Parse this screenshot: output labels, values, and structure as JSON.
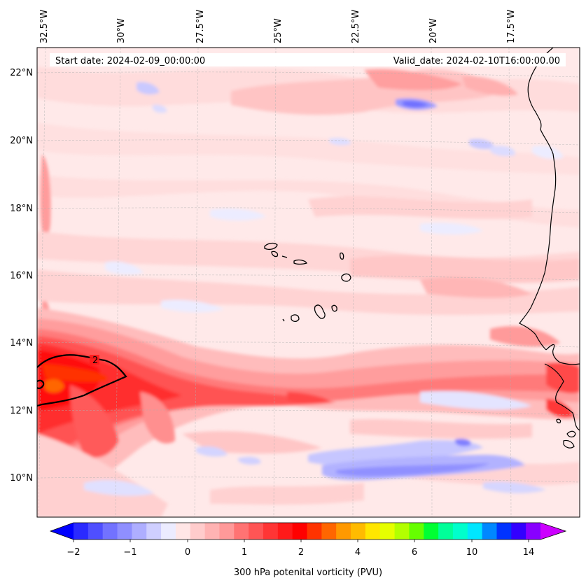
{
  "header": {
    "start_date": "Start date: 2024-02-09_00:00:00",
    "valid_date": "Valid_date: 2024-02-10T16:00:00.00"
  },
  "longitude_labels": [
    "32.5°W",
    "30°W",
    "27.5°W",
    "25°W",
    "22.5°W",
    "20°W",
    "17.5°W"
  ],
  "latitude_labels": [
    "22°N",
    "20°N",
    "18°N",
    "16°N",
    "14°N",
    "12°N",
    "10°N"
  ],
  "contour_label": "2",
  "colorbar": {
    "title": "300 hPa potenital vorticity (PVU)",
    "ticks": [
      "−2",
      "−1",
      "0",
      "1",
      "2",
      "4",
      "6",
      "10",
      "14"
    ],
    "colors": [
      "#0000ff",
      "#2a2aff",
      "#4f4fff",
      "#7272ff",
      "#8f8fff",
      "#aeaeff",
      "#cfcfff",
      "#ececff",
      "#ffe6e6",
      "#ffcccc",
      "#ffb3b3",
      "#ff9999",
      "#ff7373",
      "#ff5555",
      "#ff3535",
      "#ff1a1a",
      "#ff0000",
      "#ff3300",
      "#ff6600",
      "#ff9900",
      "#ffbb00",
      "#ffe600",
      "#e6ff00",
      "#b3ff00",
      "#66ff00",
      "#00ff33",
      "#00ff99",
      "#00ffcc",
      "#00e6ff",
      "#0088ff",
      "#0033ff",
      "#3300ff",
      "#8800ff",
      "#cc00ff"
    ]
  }
}
